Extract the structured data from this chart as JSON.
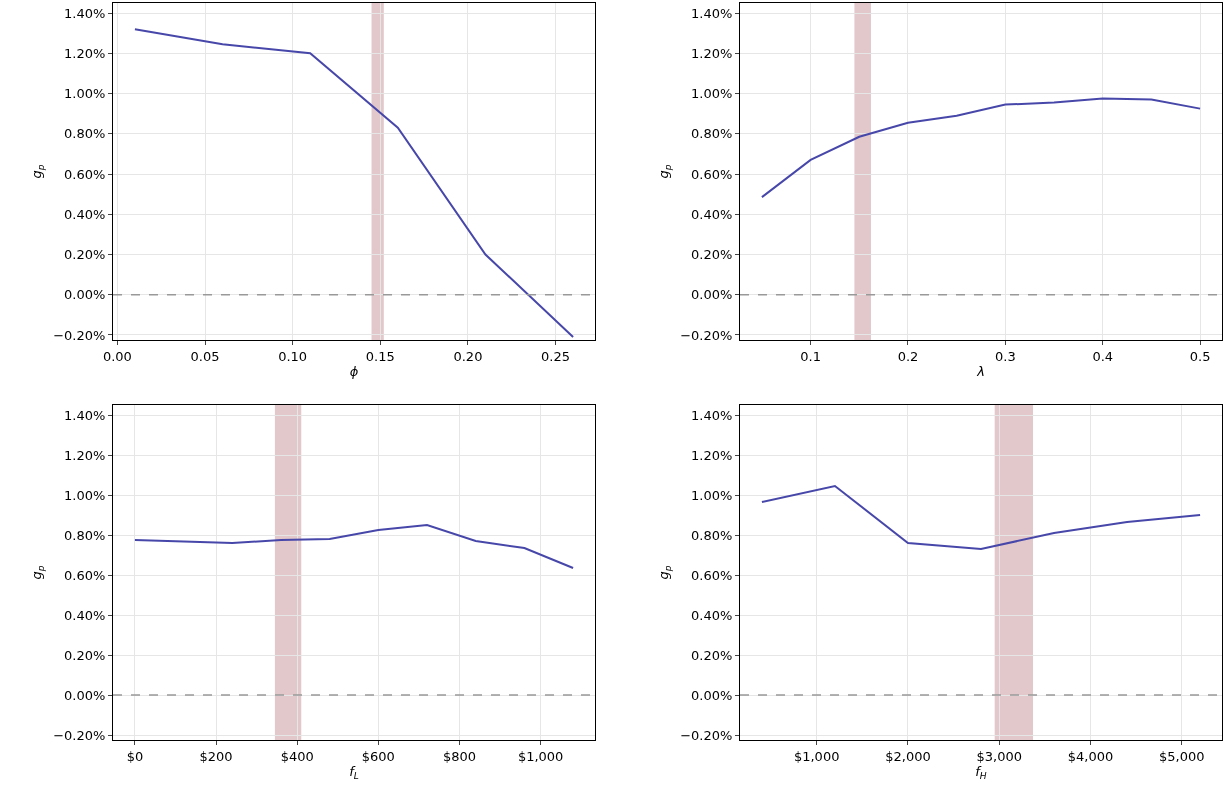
{
  "chart_data": [
    {
      "type": "line",
      "xlabel": "ϕ",
      "ylabel": "g$_{p}$",
      "x": [
        0.01,
        0.06,
        0.11,
        0.16,
        0.21,
        0.26
      ],
      "series": [
        {
          "color": "#4747aa",
          "values": [
            1.32,
            1.245,
            1.2,
            0.83,
            0.2,
            -0.21
          ]
        }
      ],
      "xlim": [
        -0.0025,
        0.2725
      ],
      "xticks": [
        {
          "value": 0,
          "label": "0.00"
        },
        {
          "value": 0.05,
          "label": "0.05"
        },
        {
          "value": 0.1,
          "label": "0.10"
        },
        {
          "value": 0.15,
          "label": "0.15"
        },
        {
          "value": 0.2,
          "label": "0.20"
        },
        {
          "value": 0.25,
          "label": "0.25"
        }
      ],
      "ylim": [
        -0.225,
        1.45
      ],
      "yticks": [
        {
          "value": -0.2,
          "label": "−0.20%"
        },
        {
          "value": 0,
          "label": "0.00%"
        },
        {
          "value": 0.2,
          "label": "0.20%"
        },
        {
          "value": 0.4,
          "label": "0.40%"
        },
        {
          "value": 0.6,
          "label": "0.60%"
        },
        {
          "value": 0.8,
          "label": "0.80%"
        },
        {
          "value": 1.0,
          "label": "1.00%"
        },
        {
          "value": 1.2,
          "label": "1.20%"
        },
        {
          "value": 1.4,
          "label": "1.40%"
        }
      ],
      "ref_lines": [
        {
          "axis": "y",
          "value": 0,
          "color": "#999999",
          "line_style": "dashed"
        }
      ],
      "bands": [
        {
          "axis": "x",
          "from": 0.145,
          "to": 0.152,
          "color": "#e2c8ca"
        }
      ],
      "grid": true,
      "marker": "none",
      "line_style": "solid"
    },
    {
      "type": "line",
      "xlabel": "λ",
      "ylabel": "g$_{p}$",
      "x": [
        0.05,
        0.1,
        0.15,
        0.2,
        0.25,
        0.3,
        0.35,
        0.4,
        0.45,
        0.5
      ],
      "series": [
        {
          "color": "#4747aa",
          "values": [
            0.485,
            0.67,
            0.785,
            0.855,
            0.89,
            0.945,
            0.955,
            0.975,
            0.97,
            0.925
          ]
        }
      ],
      "xlim": [
        0.0275,
        0.5225
      ],
      "xticks": [
        0.1,
        0.2,
        0.3,
        0.4,
        0.5
      ],
      "ylim": [
        -0.225,
        1.45
      ],
      "yticks": [
        {
          "value": -0.2,
          "label": "−0.20%"
        },
        {
          "value": 0,
          "label": "0.00%"
        },
        {
          "value": 0.2,
          "label": "0.20%"
        },
        {
          "value": 0.4,
          "label": "0.40%"
        },
        {
          "value": 0.6,
          "label": "0.60%"
        },
        {
          "value": 0.8,
          "label": "0.80%"
        },
        {
          "value": 1.0,
          "label": "1.00%"
        },
        {
          "value": 1.2,
          "label": "1.20%"
        },
        {
          "value": 1.4,
          "label": "1.40%"
        }
      ],
      "ref_lines": [
        {
          "axis": "y",
          "value": 0,
          "color": "#999999",
          "line_style": "dashed"
        }
      ],
      "bands": [
        {
          "axis": "x",
          "from": 0.145,
          "to": 0.162,
          "color": "#e2c8ca"
        }
      ],
      "grid": true,
      "marker": "none",
      "line_style": "solid"
    },
    {
      "type": "line",
      "xlabel": "f$_{L}$",
      "ylabel": "g$_{p}$",
      "x": [
        0,
        120,
        240,
        360,
        480,
        600,
        720,
        840,
        960,
        1080
      ],
      "series": [
        {
          "color": "#4747aa",
          "values": [
            0.775,
            0.768,
            0.76,
            0.775,
            0.78,
            0.825,
            0.85,
            0.77,
            0.735,
            0.635
          ]
        }
      ],
      "xlim": [
        -54,
        1134
      ],
      "xticks": [
        {
          "value": 0,
          "label": "$0"
        },
        {
          "value": 200,
          "label": "$200"
        },
        {
          "value": 400,
          "label": "$400"
        },
        {
          "value": 600,
          "label": "$600"
        },
        {
          "value": 800,
          "label": "$800"
        },
        {
          "value": 1000,
          "label": "$1,000"
        }
      ],
      "ylim": [
        -0.225,
        1.45
      ],
      "yticks": [
        {
          "value": -0.2,
          "label": "−0.20%"
        },
        {
          "value": 0,
          "label": "0.00%"
        },
        {
          "value": 0.2,
          "label": "0.20%"
        },
        {
          "value": 0.4,
          "label": "0.40%"
        },
        {
          "value": 0.6,
          "label": "0.60%"
        },
        {
          "value": 0.8,
          "label": "0.80%"
        },
        {
          "value": 1.0,
          "label": "1.00%"
        },
        {
          "value": 1.2,
          "label": "1.20%"
        },
        {
          "value": 1.4,
          "label": "1.40%"
        }
      ],
      "ref_lines": [
        {
          "axis": "y",
          "value": 0,
          "color": "#999999",
          "line_style": "dashed"
        }
      ],
      "bands": [
        {
          "axis": "x",
          "from": 345,
          "to": 410,
          "color": "#e2c8ca"
        }
      ],
      "grid": true,
      "marker": "none",
      "line_style": "solid"
    },
    {
      "type": "line",
      "xlabel": "f$_{H}$",
      "ylabel": "g$_{p}$",
      "x": [
        400,
        1200,
        2000,
        2800,
        3600,
        4400,
        5200
      ],
      "series": [
        {
          "color": "#4747aa",
          "values": [
            0.965,
            1.045,
            0.76,
            0.73,
            0.81,
            0.865,
            0.9
          ]
        }
      ],
      "xlim": [
        160,
        5440
      ],
      "xticks": [
        {
          "value": 1000,
          "label": "$1,000"
        },
        {
          "value": 2000,
          "label": "$2,000"
        },
        {
          "value": 3000,
          "label": "$3,000"
        },
        {
          "value": 4000,
          "label": "$4,000"
        },
        {
          "value": 5000,
          "label": "$5,000"
        }
      ],
      "ylim": [
        -0.225,
        1.45
      ],
      "yticks": [
        {
          "value": -0.2,
          "label": "−0.20%"
        },
        {
          "value": 0,
          "label": "0.00%"
        },
        {
          "value": 0.2,
          "label": "0.20%"
        },
        {
          "value": 0.4,
          "label": "0.40%"
        },
        {
          "value": 0.6,
          "label": "0.60%"
        },
        {
          "value": 0.8,
          "label": "0.80%"
        },
        {
          "value": 1.0,
          "label": "1.00%"
        },
        {
          "value": 1.2,
          "label": "1.20%"
        },
        {
          "value": 1.4,
          "label": "1.40%"
        }
      ],
      "ref_lines": [
        {
          "axis": "y",
          "value": 0,
          "color": "#999999",
          "line_style": "dashed"
        }
      ],
      "bands": [
        {
          "axis": "x",
          "from": 2950,
          "to": 3370,
          "color": "#e2c8ca"
        }
      ],
      "grid": true,
      "marker": "none",
      "line_style": "solid"
    }
  ]
}
